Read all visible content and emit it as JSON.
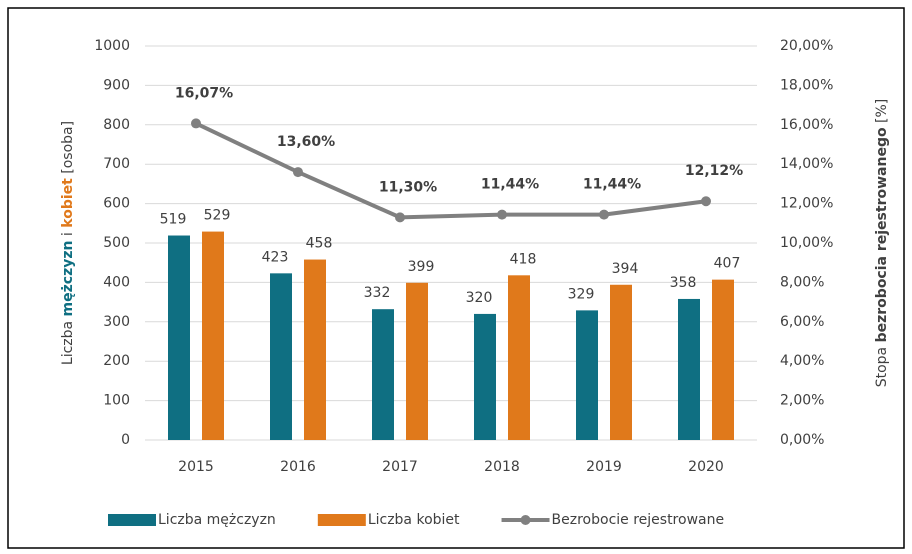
{
  "chart_data": {
    "type": "bar",
    "categories": [
      "2015",
      "2016",
      "2017",
      "2018",
      "2019",
      "2020"
    ],
    "series": [
      {
        "name": "Liczba mężczyzn",
        "color": "#0f6f82",
        "values": [
          519,
          423,
          332,
          320,
          329,
          358
        ]
      },
      {
        "name": "Liczba kobiet",
        "color": "#e0791b",
        "values": [
          529,
          458,
          399,
          418,
          394,
          407
        ]
      },
      {
        "name": "Bezrobocie rejestrowane",
        "type": "line",
        "axis": "y2",
        "color": "#808080",
        "values": [
          16.07,
          13.6,
          11.3,
          11.44,
          11.44,
          12.12
        ],
        "value_labels": [
          "16,07%",
          "13,60%",
          "11,30%",
          "11,44%",
          "11,44%",
          "12,12%"
        ]
      }
    ],
    "ylabel": [
      "Liczba",
      "mężczyzn",
      "i",
      "kobiet",
      "[osoba]"
    ],
    "y2label": [
      "Stopa",
      "bezrobocia rejestrowanego",
      "[%]"
    ],
    "ylim": [
      0,
      1000
    ],
    "yticks": [
      0,
      100,
      200,
      300,
      400,
      500,
      600,
      700,
      800,
      900,
      1000
    ],
    "y2lim": [
      0,
      20
    ],
    "y2ticks": [
      {
        "value": 0,
        "label": "0,00%"
      },
      {
        "value": 2,
        "label": "2,00%"
      },
      {
        "value": 4,
        "label": "4,00%"
      },
      {
        "value": 6,
        "label": "6,00%"
      },
      {
        "value": 8,
        "label": "8,00%"
      },
      {
        "value": 10,
        "label": "10,00%"
      },
      {
        "value": 12,
        "label": "12,00%"
      },
      {
        "value": 14,
        "label": "14,00%"
      },
      {
        "value": 16,
        "label": "16,00%"
      },
      {
        "value": 18,
        "label": "18,00%"
      },
      {
        "value": 20,
        "label": "20,00%"
      }
    ],
    "grid": true,
    "legend": "bottom"
  }
}
